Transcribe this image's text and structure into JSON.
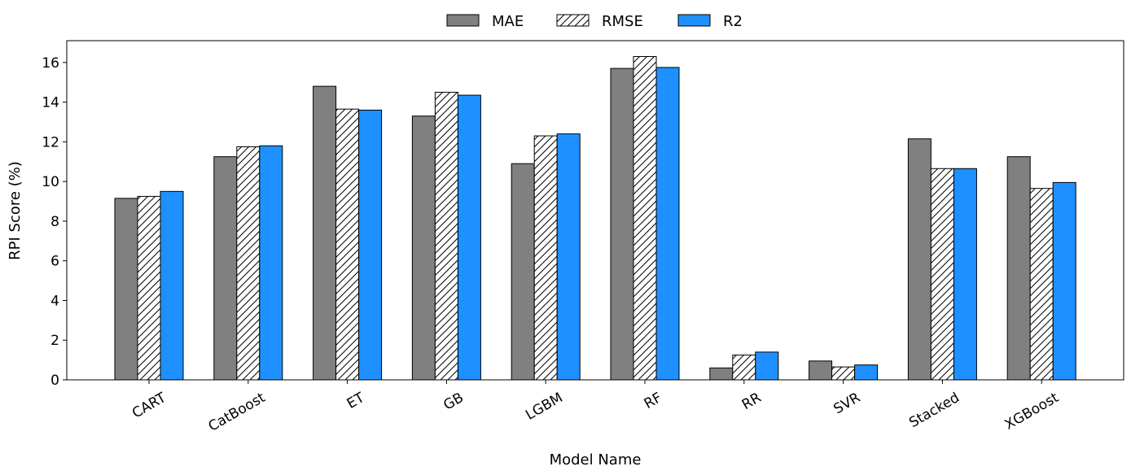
{
  "chart_data": {
    "type": "bar",
    "title": "",
    "xlabel": "Model Name",
    "ylabel": "RPI Score (%)",
    "ylim": [
      0,
      17.1
    ],
    "yticks": [
      0,
      2,
      4,
      6,
      8,
      10,
      12,
      14,
      16
    ],
    "grid": false,
    "legend_position": "top-center",
    "categories": [
      "CART",
      "CatBoost",
      "ET",
      "GB",
      "LGBM",
      "RF",
      "RR",
      "SVR",
      "Stacked",
      "XGBoost"
    ],
    "series": [
      {
        "name": "MAE",
        "color": "#808080",
        "pattern": "solid",
        "values": [
          9.15,
          11.25,
          14.8,
          13.3,
          10.9,
          15.7,
          0.6,
          0.95,
          12.15,
          11.25
        ]
      },
      {
        "name": "RMSE",
        "color": "#ffffff",
        "pattern": "diagonal-hatch",
        "values": [
          9.25,
          11.75,
          13.65,
          14.5,
          12.3,
          16.3,
          1.25,
          0.65,
          10.65,
          9.65
        ]
      },
      {
        "name": "R2",
        "color": "#1e90ff",
        "pattern": "solid",
        "values": [
          9.5,
          11.8,
          13.6,
          14.35,
          12.4,
          15.75,
          1.4,
          0.75,
          10.65,
          9.95
        ]
      }
    ]
  }
}
